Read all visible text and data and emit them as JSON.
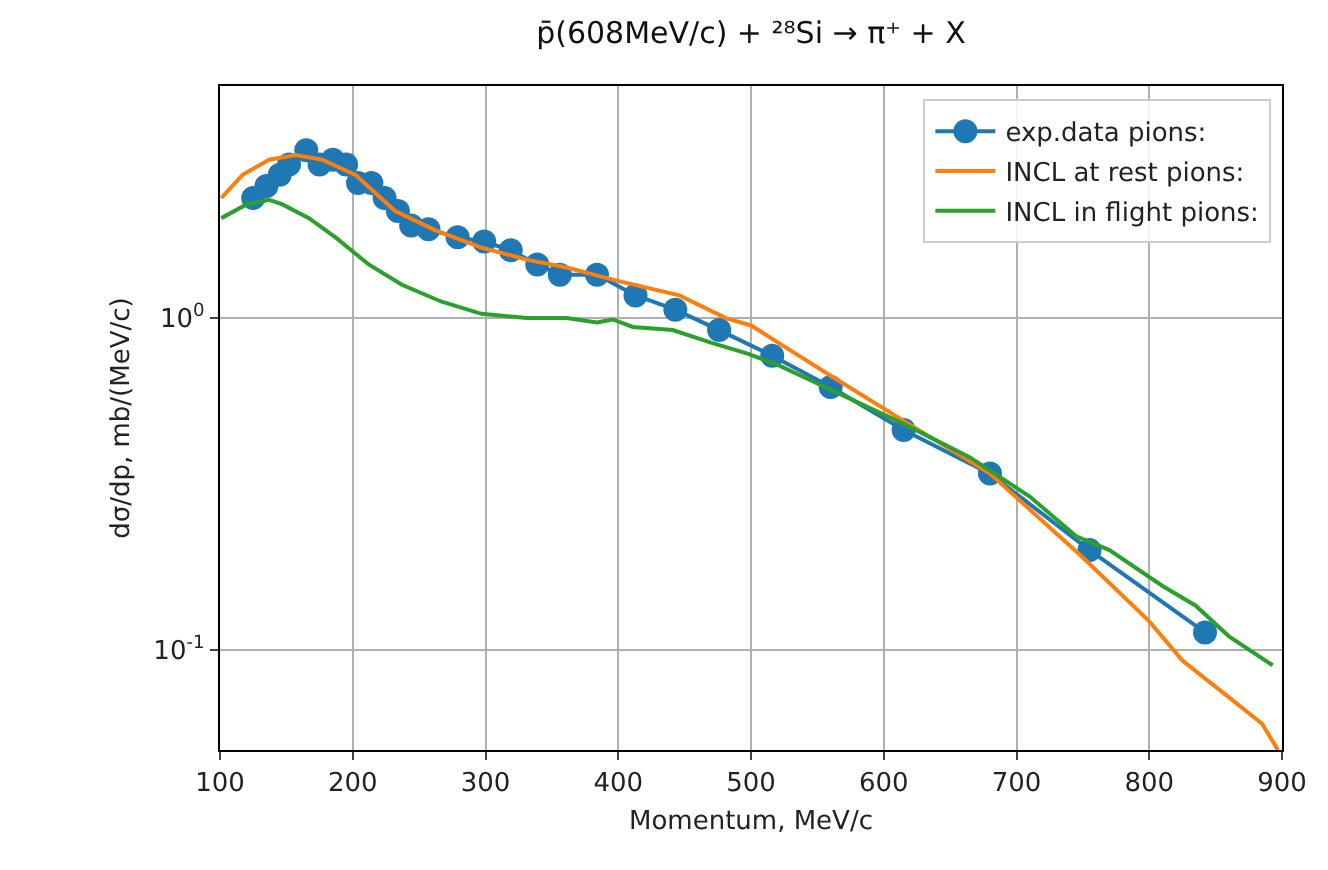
{
  "chart_data": {
    "type": "line",
    "title": "p̄(608MeV/c) + ²⁸Si → π⁺ + X",
    "xlabel": "Momentum, MeV/c",
    "ylabel": "dσ/dp, mb/(MeV/c)",
    "series": [
      {
        "name": "exp.data pions:",
        "color": "#1f77b4",
        "marker": "circle",
        "x": [
          125,
          135,
          145,
          152,
          165,
          175,
          185,
          195,
          204,
          214,
          224,
          234,
          244,
          257,
          279,
          299,
          319,
          339,
          356,
          384,
          413,
          443,
          476,
          516,
          560,
          615,
          680,
          755,
          842
        ],
        "values": [
          2.3,
          2.5,
          2.7,
          2.9,
          3.2,
          2.9,
          3.0,
          2.9,
          2.55,
          2.55,
          2.3,
          2.1,
          1.9,
          1.85,
          1.75,
          1.7,
          1.6,
          1.45,
          1.35,
          1.35,
          1.17,
          1.06,
          0.92,
          0.77,
          0.62,
          0.46,
          0.34,
          0.2,
          0.113
        ]
      },
      {
        "name": "INCL at rest pions:",
        "color": "#ff7f0e",
        "marker": "none",
        "x": [
          101,
          117,
          137,
          157,
          177,
          202,
          232,
          262,
          297,
          331,
          361,
          401,
          446,
          481,
          500,
          515,
          560,
          615,
          680,
          750,
          800,
          825,
          860,
          885,
          897
        ],
        "values": [
          2.3,
          2.7,
          3.0,
          3.1,
          3.0,
          2.7,
          2.1,
          1.84,
          1.63,
          1.5,
          1.42,
          1.29,
          1.17,
          1.0,
          0.95,
          0.87,
          0.67,
          0.49,
          0.34,
          0.19,
          0.122,
          0.093,
          0.072,
          0.06,
          0.05
        ]
      },
      {
        "name": "INCL in flight pions:",
        "color": "#2ca02c",
        "marker": "none",
        "x": [
          101,
          120,
          137,
          147,
          167,
          187,
          212,
          237,
          267,
          297,
          331,
          361,
          384,
          396,
          411,
          441,
          471,
          498,
          521,
          550,
          615,
          665,
          710,
          745,
          770,
          810,
          835,
          860,
          893
        ],
        "values": [
          2.0,
          2.2,
          2.27,
          2.2,
          2.0,
          1.75,
          1.45,
          1.26,
          1.12,
          1.03,
          1.0,
          1.0,
          0.97,
          0.99,
          0.94,
          0.92,
          0.84,
          0.78,
          0.72,
          0.635,
          0.48,
          0.38,
          0.29,
          0.22,
          0.2,
          0.156,
          0.136,
          0.11,
          0.09
        ]
      }
    ],
    "xlim": [
      100,
      900
    ],
    "xticks": [
      100,
      200,
      300,
      400,
      500,
      600,
      700,
      800,
      900
    ],
    "ylim": [
      0.05,
      5
    ],
    "yticks": [
      {
        "value": 1,
        "label": "10$^{0}$"
      },
      {
        "value": 0.1,
        "label": "10$^{-1}$"
      }
    ],
    "log": "y",
    "grid": true,
    "legend": "top right",
    "line_style": "solid"
  }
}
